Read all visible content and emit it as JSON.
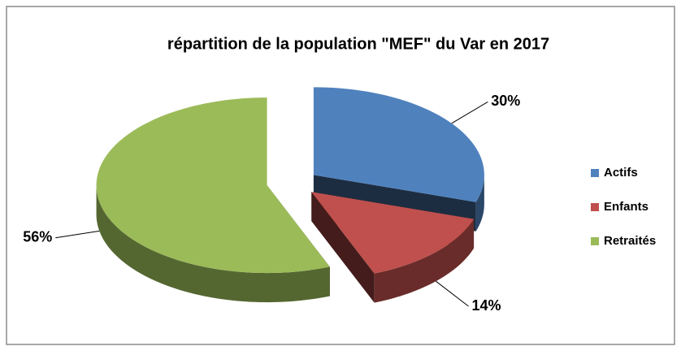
{
  "chart_data": {
    "type": "pie",
    "title": "répartition de la population \"MEF\" du Var en 2017",
    "categories": [
      "Actifs",
      "Enfants",
      "Retraités"
    ],
    "values": [
      30,
      14,
      56
    ],
    "value_labels": [
      "30%",
      "14%",
      "56%"
    ],
    "colors": [
      "#4f81bd",
      "#c0504d",
      "#9bbb59"
    ],
    "legend": "right"
  }
}
